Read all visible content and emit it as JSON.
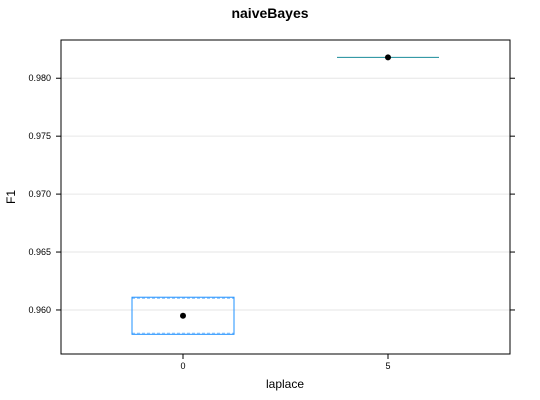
{
  "chart_data": {
    "type": "boxplot",
    "title": "naiveBayes",
    "xlabel": "laplace",
    "ylabel": "F1",
    "categories": [
      "0",
      "5"
    ],
    "ylim": [
      0.9562,
      0.9833
    ],
    "yticks": [
      "0.960",
      "0.965",
      "0.970",
      "0.975",
      "0.980"
    ],
    "grid": true,
    "boxes": [
      {
        "category": "0",
        "min": 0.9579,
        "q1": 0.9579,
        "median": 0.9595,
        "q3": 0.9611,
        "max": 0.9611
      },
      {
        "category": "5",
        "min": 0.9818,
        "q1": 0.9818,
        "median": 0.9818,
        "q3": 0.9818,
        "max": 0.9818
      }
    ],
    "colors": {
      "box": "#1e90ff",
      "flat_box": "#1a8c9a",
      "median_point": "#000000",
      "grid": "#e6e6e6",
      "frame": "#000000"
    }
  }
}
